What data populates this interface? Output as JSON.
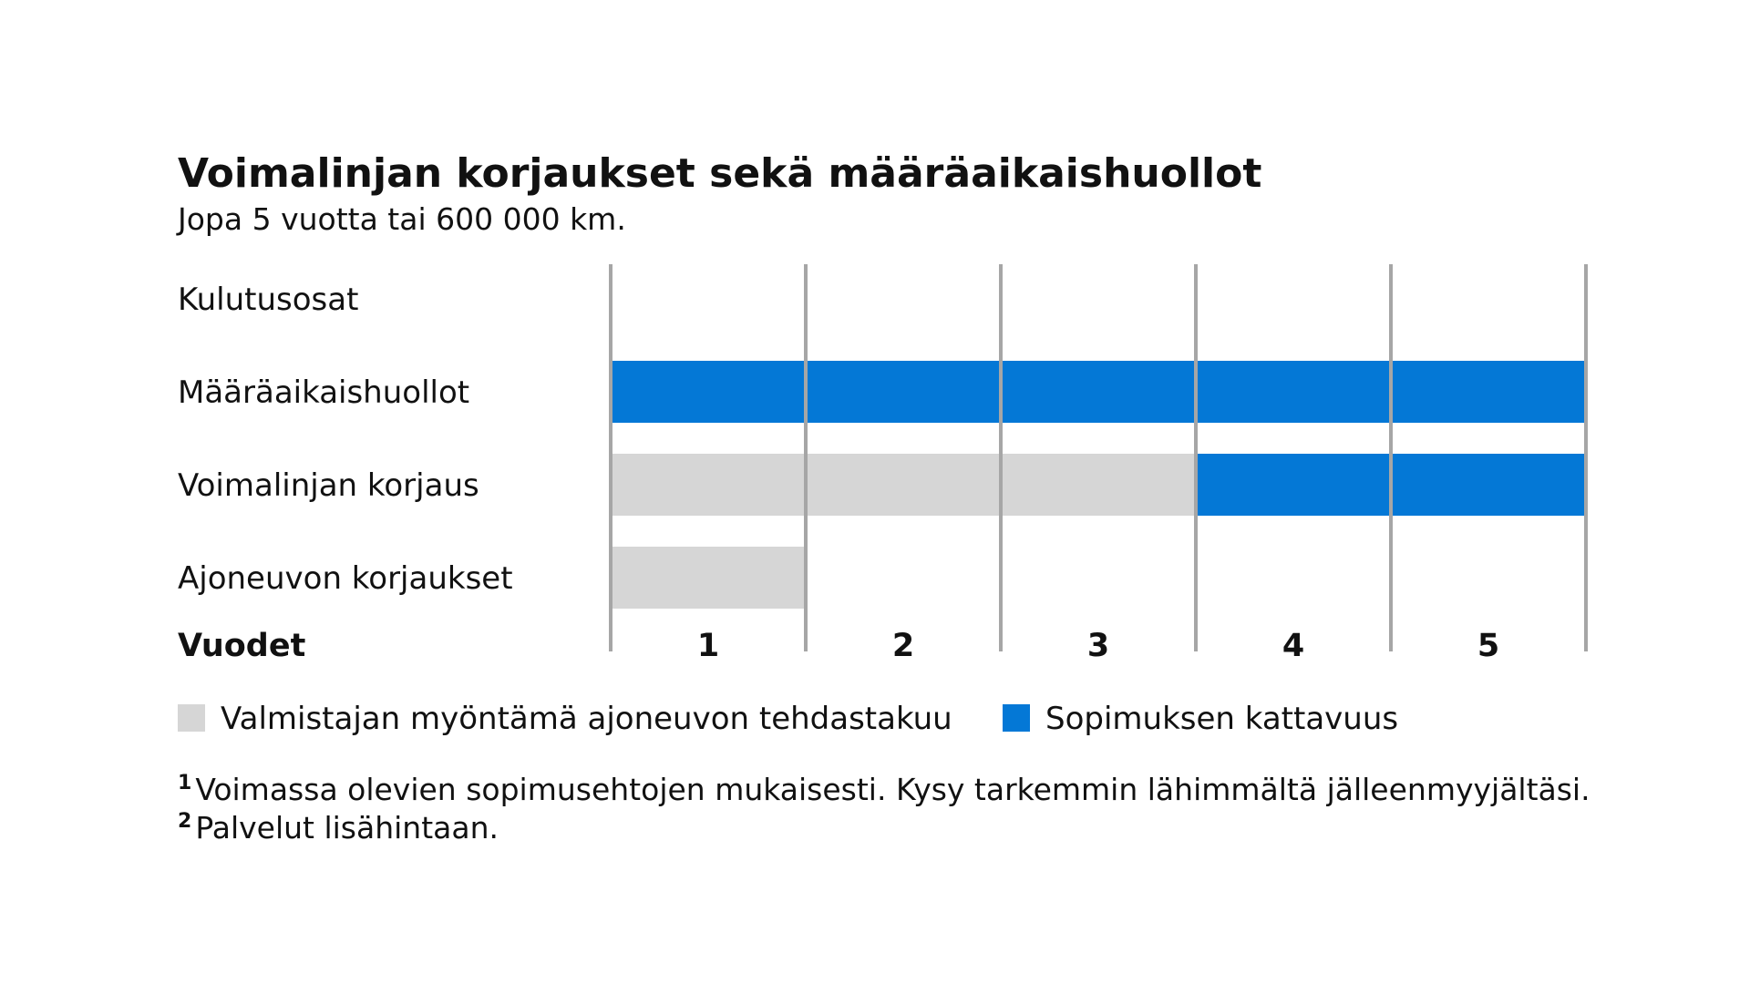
{
  "chart_data": {
    "type": "bar",
    "title": "Voimalinjan korjaukset sekä määräaikaishuollot",
    "subtitle": "Jopa 5 vuotta tai 600 000 km.",
    "xlabel": "Vuodet",
    "ylabel": "",
    "x_ticks": [
      "1",
      "2",
      "3",
      "4",
      "5"
    ],
    "xlim": [
      0,
      5
    ],
    "grid": true,
    "legend_position": "bottom-left",
    "categories": [
      "Kulutusosat",
      "Määräaikaishuollot",
      "Voimalinjan korjaus",
      "Ajoneuvon korjaukset"
    ],
    "series": [
      {
        "name": "Valmistajan myöntämä ajoneuvon tehdastakuu",
        "color": "#d6d6d6",
        "segments": [
          {
            "category": "Voimalinjan korjaus",
            "start": 0,
            "end": 3
          },
          {
            "category": "Ajoneuvon korjaukset",
            "start": 0,
            "end": 1
          }
        ]
      },
      {
        "name": "Sopimuksen kattavuus",
        "color": "#0478d6",
        "segments": [
          {
            "category": "Määräaikaishuollot",
            "start": 0,
            "end": 5
          },
          {
            "category": "Voimalinjan korjaus",
            "start": 3,
            "end": 5
          }
        ]
      }
    ],
    "footnotes": [
      {
        "mark": "1",
        "text": "Voimassa olevien sopimusehtojen mukaisesti. Kysy tarkemmin lähimmältä jälleenmyyjältäsi."
      },
      {
        "mark": "2",
        "text": "Palvelut lisähintaan."
      }
    ]
  }
}
